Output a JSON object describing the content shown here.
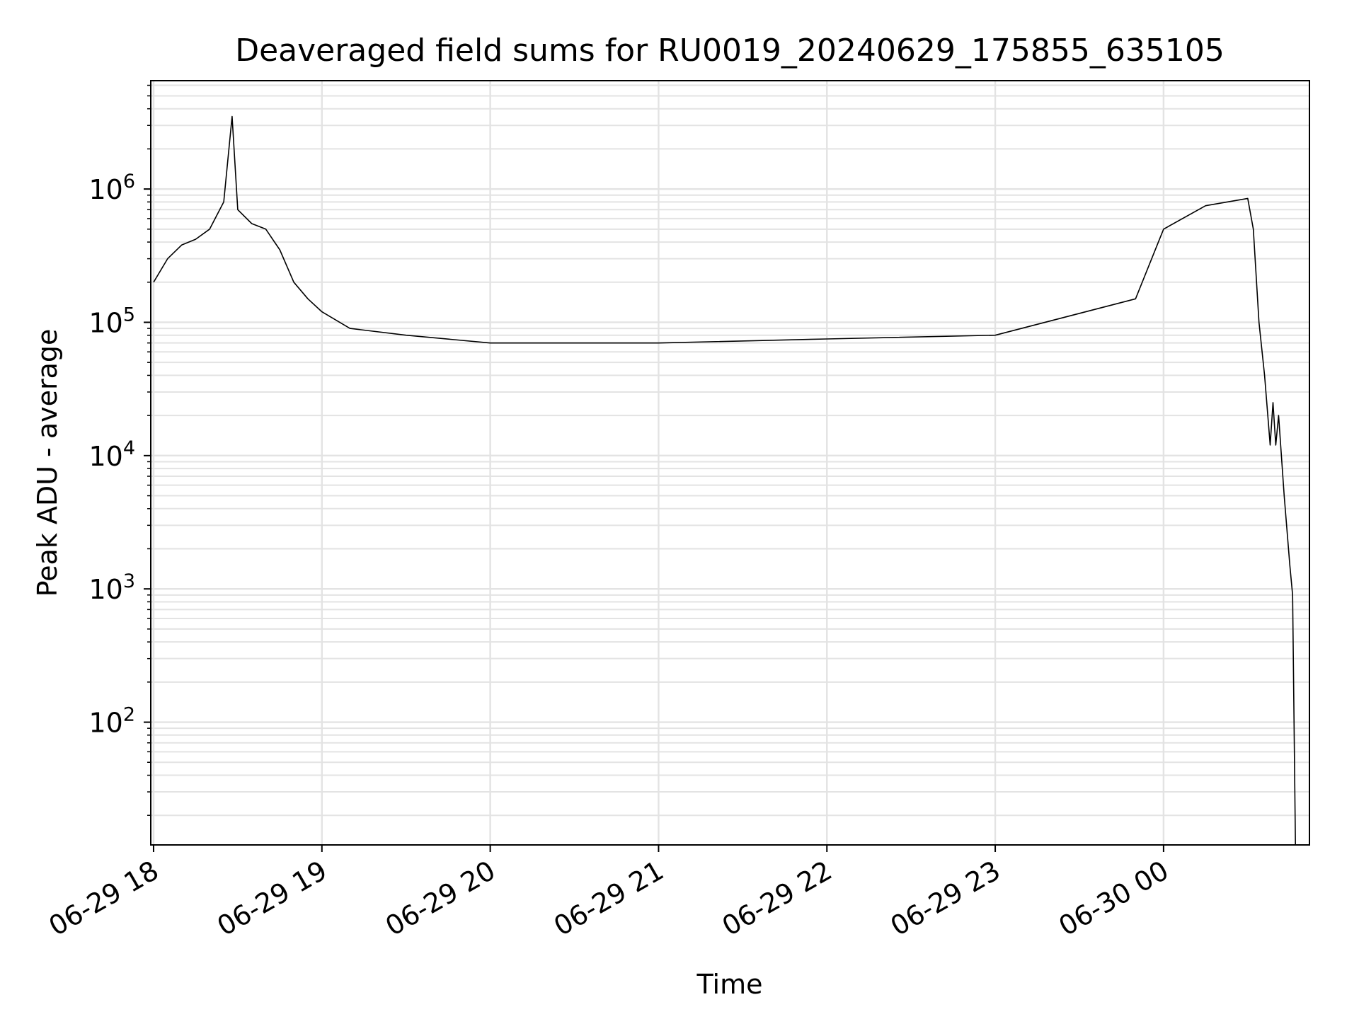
{
  "chart_data": {
    "type": "line",
    "title": "Deaveraged field sums for RU0019_20240629_175855_635105",
    "xlabel": "Time",
    "ylabel": "Peak ADU - average",
    "yscale": "log",
    "grid": true,
    "grid_minor": true,
    "xlim": [
      "2024-06-29 17:59",
      "2024-06-30 00:52"
    ],
    "ylim": [
      12,
      6500000
    ],
    "x_ticks": [
      {
        "t": "2024-06-29 18:00",
        "label": "06-29 18"
      },
      {
        "t": "2024-06-29 19:00",
        "label": "06-29 19"
      },
      {
        "t": "2024-06-29 20:00",
        "label": "06-29 20"
      },
      {
        "t": "2024-06-29 21:00",
        "label": "06-29 21"
      },
      {
        "t": "2024-06-29 22:00",
        "label": "06-29 22"
      },
      {
        "t": "2024-06-29 23:00",
        "label": "06-29 23"
      },
      {
        "t": "2024-06-30 00:00",
        "label": "06-30 00"
      }
    ],
    "y_ticks": [
      {
        "value": 100,
        "base": "10",
        "exp": "2"
      },
      {
        "value": 1000,
        "base": "10",
        "exp": "3"
      },
      {
        "value": 10000,
        "base": "10",
        "exp": "4"
      },
      {
        "value": 100000,
        "base": "10",
        "exp": "5"
      },
      {
        "value": 1000000,
        "base": "10",
        "exp": "6"
      }
    ],
    "series": [
      {
        "color": "#000000",
        "points": [
          {
            "t": "2024-06-29 18:00",
            "y": 200000
          },
          {
            "t": "2024-06-29 18:05",
            "y": 300000
          },
          {
            "t": "2024-06-29 18:10",
            "y": 380000
          },
          {
            "t": "2024-06-29 18:15",
            "y": 420000
          },
          {
            "t": "2024-06-29 18:20",
            "y": 500000
          },
          {
            "t": "2024-06-29 18:25",
            "y": 800000
          },
          {
            "t": "2024-06-29 18:28",
            "y": 3500000
          },
          {
            "t": "2024-06-29 18:30",
            "y": 700000
          },
          {
            "t": "2024-06-29 18:35",
            "y": 550000
          },
          {
            "t": "2024-06-29 18:40",
            "y": 500000
          },
          {
            "t": "2024-06-29 18:45",
            "y": 350000
          },
          {
            "t": "2024-06-29 18:50",
            "y": 200000
          },
          {
            "t": "2024-06-29 18:55",
            "y": 150000
          },
          {
            "t": "2024-06-29 19:00",
            "y": 120000
          },
          {
            "t": "2024-06-29 19:10",
            "y": 90000
          },
          {
            "t": "2024-06-29 19:30",
            "y": 80000
          },
          {
            "t": "2024-06-29 20:00",
            "y": 70000
          },
          {
            "t": "2024-06-29 21:00",
            "y": 70000
          },
          {
            "t": "2024-06-29 22:00",
            "y": 75000
          },
          {
            "t": "2024-06-29 23:00",
            "y": 80000
          },
          {
            "t": "2024-06-29 23:50",
            "y": 150000
          },
          {
            "t": "2024-06-30 00:00",
            "y": 500000
          },
          {
            "t": "2024-06-30 00:15",
            "y": 750000
          },
          {
            "t": "2024-06-30 00:30",
            "y": 850000
          },
          {
            "t": "2024-06-30 00:32",
            "y": 500000
          },
          {
            "t": "2024-06-30 00:34",
            "y": 100000
          },
          {
            "t": "2024-06-30 00:36",
            "y": 40000
          },
          {
            "t": "2024-06-30 00:38",
            "y": 12000
          },
          {
            "t": "2024-06-30 00:39",
            "y": 25000
          },
          {
            "t": "2024-06-30 00:40",
            "y": 12000
          },
          {
            "t": "2024-06-30 00:41",
            "y": 20000
          },
          {
            "t": "2024-06-30 00:43",
            "y": 5000
          },
          {
            "t": "2024-06-30 00:45",
            "y": 1500
          },
          {
            "t": "2024-06-30 00:46",
            "y": 900
          },
          {
            "t": "2024-06-30 00:47",
            "y": 12
          }
        ]
      }
    ]
  }
}
